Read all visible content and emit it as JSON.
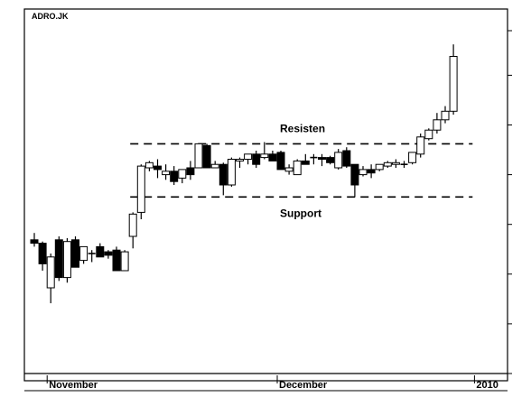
{
  "chart_data": {
    "type": "candlestick",
    "title": "ADRO.JK",
    "x_labels": [
      {
        "text": "November",
        "index": 2
      },
      {
        "text": "December",
        "index": 30
      },
      {
        "text": "2010",
        "index": 54
      }
    ],
    "ylim": [
      0,
      100
    ],
    "y_tick_values": [
      0,
      14.5,
      29,
      43.5,
      58,
      72.5,
      87,
      100
    ],
    "grid": false,
    "levels": [
      {
        "name": "resistance",
        "label": "Resisten",
        "value": 67,
        "from_index": 12,
        "to_index": 53
      },
      {
        "name": "support",
        "label": "Support",
        "value": 51.5,
        "from_index": 12,
        "to_index": 53
      }
    ],
    "candles": [
      {
        "o": 39,
        "h": 41,
        "l": 37,
        "c": 38
      },
      {
        "o": 38,
        "h": 38.5,
        "l": 30,
        "c": 32
      },
      {
        "o": 25,
        "h": 35,
        "l": 20.5,
        "c": 34
      },
      {
        "o": 39,
        "h": 40,
        "l": 27,
        "c": 28
      },
      {
        "o": 28,
        "h": 39.5,
        "l": 26.5,
        "c": 38.5
      },
      {
        "o": 39,
        "h": 40,
        "l": 31,
        "c": 31
      },
      {
        "o": 33,
        "h": 37,
        "l": 32,
        "c": 37
      },
      {
        "o": 35,
        "h": 36,
        "l": 32.5,
        "c": 35
      },
      {
        "o": 37,
        "h": 38,
        "l": 34,
        "c": 34
      },
      {
        "o": 35.5,
        "h": 36,
        "l": 33.5,
        "c": 34.5
      },
      {
        "o": 36,
        "h": 37,
        "l": 30,
        "c": 30
      },
      {
        "o": 30,
        "h": 36,
        "l": 30,
        "c": 35.5
      },
      {
        "o": 40,
        "h": 47,
        "l": 36.5,
        "c": 46.5
      },
      {
        "o": 47,
        "h": 61,
        "l": 45,
        "c": 60.5
      },
      {
        "o": 60,
        "h": 62,
        "l": 59,
        "c": 61.5
      },
      {
        "o": 60.5,
        "h": 62.5,
        "l": 57,
        "c": 59.5
      },
      {
        "o": 58,
        "h": 61,
        "l": 56.5,
        "c": 59
      },
      {
        "o": 59,
        "h": 60.5,
        "l": 55,
        "c": 56
      },
      {
        "o": 57,
        "h": 59,
        "l": 55.5,
        "c": 59.5
      },
      {
        "o": 60,
        "h": 62,
        "l": 56.5,
        "c": 58
      },
      {
        "o": 60,
        "h": 67,
        "l": 60,
        "c": 67
      },
      {
        "o": 66.5,
        "h": 67,
        "l": 60,
        "c": 60
      },
      {
        "o": 60,
        "h": 62,
        "l": 60,
        "c": 61
      },
      {
        "o": 61,
        "h": 61.5,
        "l": 52,
        "c": 55
      },
      {
        "o": 55,
        "h": 63,
        "l": 54.5,
        "c": 62.5
      },
      {
        "o": 62,
        "h": 63,
        "l": 60,
        "c": 62.5
      },
      {
        "o": 62.5,
        "h": 64,
        "l": 61,
        "c": 64
      },
      {
        "o": 64,
        "h": 65,
        "l": 60,
        "c": 61
      },
      {
        "o": 63,
        "h": 67.5,
        "l": 62.5,
        "c": 64
      },
      {
        "o": 64,
        "h": 65,
        "l": 62,
        "c": 62
      },
      {
        "o": 64.5,
        "h": 65,
        "l": 59.5,
        "c": 59.5
      },
      {
        "o": 59,
        "h": 61,
        "l": 58,
        "c": 60
      },
      {
        "o": 58,
        "h": 62.5,
        "l": 58,
        "c": 62
      },
      {
        "o": 62,
        "h": 64,
        "l": 61,
        "c": 61
      },
      {
        "o": 63,
        "h": 64,
        "l": 61,
        "c": 63
      },
      {
        "o": 63,
        "h": 64,
        "l": 60.5,
        "c": 62.5
      },
      {
        "o": 63,
        "h": 63.5,
        "l": 61,
        "c": 61.5
      },
      {
        "o": 60,
        "h": 65.5,
        "l": 59.5,
        "c": 64.5
      },
      {
        "o": 65,
        "h": 66,
        "l": 60,
        "c": 60.5
      },
      {
        "o": 61,
        "h": 61,
        "l": 51.5,
        "c": 55
      },
      {
        "o": 58,
        "h": 60.5,
        "l": 57.5,
        "c": 59.5
      },
      {
        "o": 59.5,
        "h": 61,
        "l": 57,
        "c": 58.5
      },
      {
        "o": 59.5,
        "h": 61,
        "l": 59,
        "c": 61
      },
      {
        "o": 60.5,
        "h": 62,
        "l": 60,
        "c": 61.5
      },
      {
        "o": 61,
        "h": 62.5,
        "l": 60,
        "c": 61.5
      },
      {
        "o": 61,
        "h": 62,
        "l": 60,
        "c": 61
      },
      {
        "o": 61.5,
        "h": 64.5,
        "l": 61,
        "c": 64.5
      },
      {
        "o": 64,
        "h": 70,
        "l": 63,
        "c": 69
      },
      {
        "o": 68.5,
        "h": 71.5,
        "l": 68,
        "c": 71
      },
      {
        "o": 71,
        "h": 76,
        "l": 70,
        "c": 74
      },
      {
        "o": 74,
        "h": 78,
        "l": 73,
        "c": 76.5
      },
      {
        "o": 76.5,
        "h": 96,
        "l": 75.5,
        "c": 92.5
      }
    ]
  }
}
